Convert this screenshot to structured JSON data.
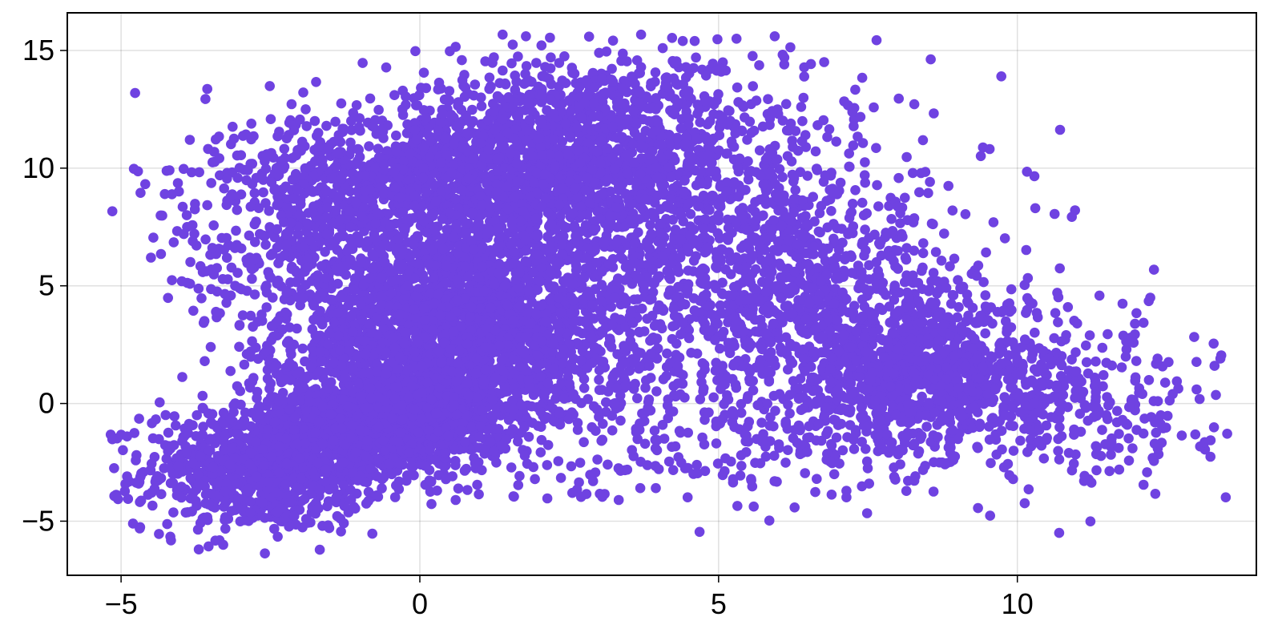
{
  "colors": {
    "point": "#6f42e1",
    "background": "#ffffff",
    "axis": "#000000"
  },
  "chart_data": {
    "type": "scatter",
    "title": "",
    "xlabel": "",
    "ylabel": "",
    "xlim": [
      -5.9,
      14.0
    ],
    "ylim": [
      -7.3,
      16.6
    ],
    "x_ticks": [
      -5,
      0,
      5,
      10
    ],
    "x_tick_labels": [
      "−5",
      "0",
      "5",
      "10"
    ],
    "y_ticks": [
      -5,
      0,
      5,
      10,
      15
    ],
    "y_tick_labels": [
      "−5",
      "0",
      "5",
      "10",
      "15"
    ],
    "grid": true,
    "legend": "none",
    "series": [
      {
        "color": "#6f42e1",
        "clusters": [
          {
            "center": [
              -2.6,
              -2.8
            ],
            "spread": [
              1.0,
              1.3
            ],
            "count": 900
          },
          {
            "center": [
              -0.5,
              -0.5
            ],
            "spread": [
              1.0,
              1.2
            ],
            "count": 1300
          },
          {
            "center": [
              0.7,
              3.0
            ],
            "spread": [
              1.4,
              2.0
            ],
            "count": 2200
          },
          {
            "center": [
              0.4,
              9.3
            ],
            "spread": [
              1.6,
              1.8
            ],
            "count": 1100
          },
          {
            "center": [
              -1.8,
              7.0
            ],
            "spread": [
              1.2,
              2.5
            ],
            "count": 450
          },
          {
            "center": [
              2.8,
              11.2
            ],
            "spread": [
              1.4,
              1.7
            ],
            "count": 800
          },
          {
            "center": [
              4.5,
              7.8
            ],
            "spread": [
              2.0,
              3.5
            ],
            "count": 1100
          },
          {
            "center": [
              6.4,
              4.0
            ],
            "spread": [
              1.4,
              2.3
            ],
            "count": 700
          },
          {
            "center": [
              5.3,
              -1.2
            ],
            "spread": [
              1.9,
              1.4
            ],
            "count": 260
          },
          {
            "center": [
              8.6,
              1.2
            ],
            "spread": [
              1.1,
              1.6
            ],
            "count": 900
          },
          {
            "center": [
              11.2,
              0.0
            ],
            "spread": [
              1.2,
              2.0
            ],
            "count": 260
          }
        ],
        "points": [
          [
            -4.5,
            6.2
          ],
          [
            -3.9,
            8.0
          ],
          [
            -3.95,
            7.2
          ],
          [
            -3.8,
            6.9
          ],
          [
            -3.6,
            1.8
          ],
          [
            -3.5,
            2.4
          ],
          [
            -4.9,
            -1.4
          ],
          [
            -4.9,
            -3.1
          ],
          [
            -4.8,
            -5.1
          ],
          [
            -3.7,
            -6.2
          ],
          [
            10.3,
            8.3
          ],
          [
            10.7,
            -5.5
          ],
          [
            13.3,
            1.6
          ],
          [
            13.0,
            0.6
          ],
          [
            12.6,
            0.4
          ],
          [
            11.0,
            3.4
          ],
          [
            9.6,
            7.7
          ],
          [
            11.9,
            2.8
          ],
          [
            12.4,
            -0.5
          ],
          [
            0.6,
            -4.1
          ],
          [
            4.4,
            15.4
          ],
          [
            4.6,
            15.4
          ],
          [
            5.3,
            15.5
          ],
          [
            6.1,
            14.7
          ],
          [
            3.0,
            14.9
          ],
          [
            -2.4,
            10.0
          ],
          [
            -1.7,
            11.5
          ],
          [
            2.9,
            -3.3
          ],
          [
            1.9,
            -2.7
          ],
          [
            -1.4,
            -4.0
          ]
        ]
      }
    ]
  }
}
